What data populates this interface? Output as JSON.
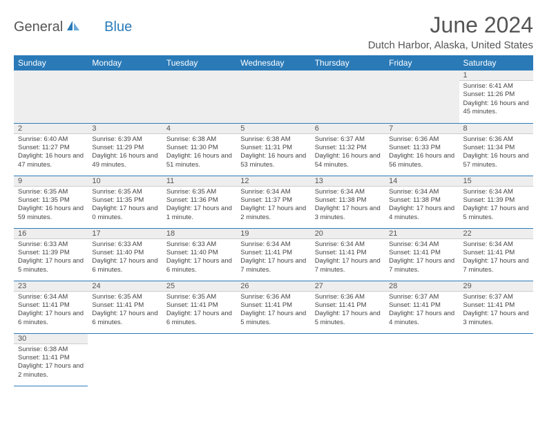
{
  "logo": {
    "part1": "General",
    "part2": "Blue"
  },
  "title": "June 2024",
  "location": "Dutch Harbor, Alaska, United States",
  "colors": {
    "header_bg": "#2a7ab8",
    "header_text": "#ffffff",
    "daynum_bg": "#eeeeee",
    "border": "#2a7ab8",
    "text": "#444444"
  },
  "weekdays": [
    "Sunday",
    "Monday",
    "Tuesday",
    "Wednesday",
    "Thursday",
    "Friday",
    "Saturday"
  ],
  "days": {
    "1": {
      "sunrise": "6:41 AM",
      "sunset": "11:26 PM",
      "daylight": "16 hours and 45 minutes."
    },
    "2": {
      "sunrise": "6:40 AM",
      "sunset": "11:27 PM",
      "daylight": "16 hours and 47 minutes."
    },
    "3": {
      "sunrise": "6:39 AM",
      "sunset": "11:29 PM",
      "daylight": "16 hours and 49 minutes."
    },
    "4": {
      "sunrise": "6:38 AM",
      "sunset": "11:30 PM",
      "daylight": "16 hours and 51 minutes."
    },
    "5": {
      "sunrise": "6:38 AM",
      "sunset": "11:31 PM",
      "daylight": "16 hours and 53 minutes."
    },
    "6": {
      "sunrise": "6:37 AM",
      "sunset": "11:32 PM",
      "daylight": "16 hours and 54 minutes."
    },
    "7": {
      "sunrise": "6:36 AM",
      "sunset": "11:33 PM",
      "daylight": "16 hours and 56 minutes."
    },
    "8": {
      "sunrise": "6:36 AM",
      "sunset": "11:34 PM",
      "daylight": "16 hours and 57 minutes."
    },
    "9": {
      "sunrise": "6:35 AM",
      "sunset": "11:35 PM",
      "daylight": "16 hours and 59 minutes."
    },
    "10": {
      "sunrise": "6:35 AM",
      "sunset": "11:35 PM",
      "daylight": "17 hours and 0 minutes."
    },
    "11": {
      "sunrise": "6:35 AM",
      "sunset": "11:36 PM",
      "daylight": "17 hours and 1 minute."
    },
    "12": {
      "sunrise": "6:34 AM",
      "sunset": "11:37 PM",
      "daylight": "17 hours and 2 minutes."
    },
    "13": {
      "sunrise": "6:34 AM",
      "sunset": "11:38 PM",
      "daylight": "17 hours and 3 minutes."
    },
    "14": {
      "sunrise": "6:34 AM",
      "sunset": "11:38 PM",
      "daylight": "17 hours and 4 minutes."
    },
    "15": {
      "sunrise": "6:34 AM",
      "sunset": "11:39 PM",
      "daylight": "17 hours and 5 minutes."
    },
    "16": {
      "sunrise": "6:33 AM",
      "sunset": "11:39 PM",
      "daylight": "17 hours and 5 minutes."
    },
    "17": {
      "sunrise": "6:33 AM",
      "sunset": "11:40 PM",
      "daylight": "17 hours and 6 minutes."
    },
    "18": {
      "sunrise": "6:33 AM",
      "sunset": "11:40 PM",
      "daylight": "17 hours and 6 minutes."
    },
    "19": {
      "sunrise": "6:34 AM",
      "sunset": "11:41 PM",
      "daylight": "17 hours and 7 minutes."
    },
    "20": {
      "sunrise": "6:34 AM",
      "sunset": "11:41 PM",
      "daylight": "17 hours and 7 minutes."
    },
    "21": {
      "sunrise": "6:34 AM",
      "sunset": "11:41 PM",
      "daylight": "17 hours and 7 minutes."
    },
    "22": {
      "sunrise": "6:34 AM",
      "sunset": "11:41 PM",
      "daylight": "17 hours and 7 minutes."
    },
    "23": {
      "sunrise": "6:34 AM",
      "sunset": "11:41 PM",
      "daylight": "17 hours and 6 minutes."
    },
    "24": {
      "sunrise": "6:35 AM",
      "sunset": "11:41 PM",
      "daylight": "17 hours and 6 minutes."
    },
    "25": {
      "sunrise": "6:35 AM",
      "sunset": "11:41 PM",
      "daylight": "17 hours and 6 minutes."
    },
    "26": {
      "sunrise": "6:36 AM",
      "sunset": "11:41 PM",
      "daylight": "17 hours and 5 minutes."
    },
    "27": {
      "sunrise": "6:36 AM",
      "sunset": "11:41 PM",
      "daylight": "17 hours and 5 minutes."
    },
    "28": {
      "sunrise": "6:37 AM",
      "sunset": "11:41 PM",
      "daylight": "17 hours and 4 minutes."
    },
    "29": {
      "sunrise": "6:37 AM",
      "sunset": "11:41 PM",
      "daylight": "17 hours and 3 minutes."
    },
    "30": {
      "sunrise": "6:38 AM",
      "sunset": "11:41 PM",
      "daylight": "17 hours and 2 minutes."
    }
  },
  "labels": {
    "sunrise": "Sunrise:",
    "sunset": "Sunset:",
    "daylight": "Daylight:"
  },
  "layout": {
    "first_weekday_index": 6,
    "num_days": 30
  }
}
